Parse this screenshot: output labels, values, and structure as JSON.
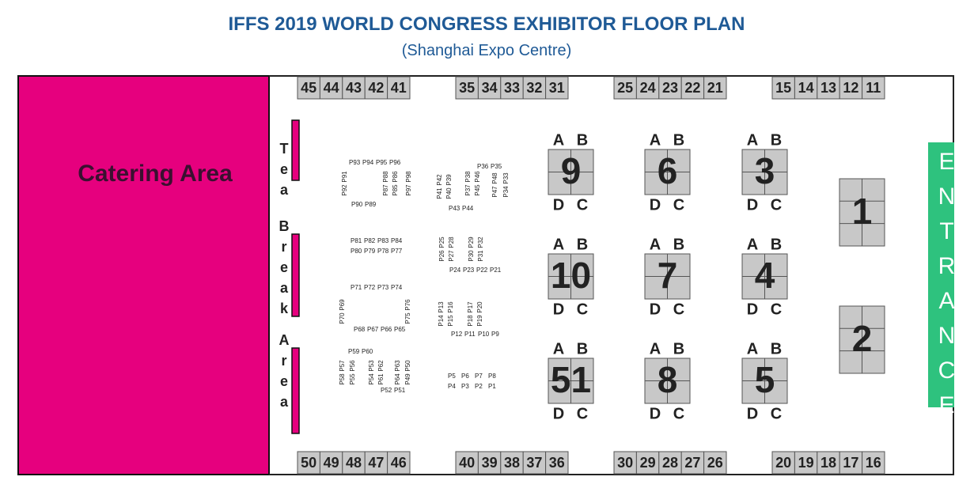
{
  "header": {
    "title": "IFFS 2019 WORLD CONGRESS EXHIBITOR FLOOR PLAN",
    "subtitle": "(Shanghai Expo Centre)"
  },
  "catering": "Catering Area",
  "tea_break": [
    "Tea",
    "Break",
    "Area"
  ],
  "entrance": "ENTRANCE",
  "booths_top": [
    [
      "45",
      "44",
      "43",
      "42",
      "41"
    ],
    [
      "35",
      "34",
      "33",
      "32",
      "31"
    ],
    [
      "25",
      "24",
      "23",
      "22",
      "21"
    ],
    [
      "15",
      "14",
      "13",
      "12",
      "11"
    ]
  ],
  "booths_bottom": [
    [
      "50",
      "49",
      "48",
      "47",
      "46"
    ],
    [
      "40",
      "39",
      "38",
      "37",
      "36"
    ],
    [
      "30",
      "29",
      "28",
      "27",
      "26"
    ],
    [
      "20",
      "19",
      "18",
      "17",
      "16"
    ]
  ],
  "islands": [
    {
      "label": "9",
      "top": [
        "A",
        "B"
      ],
      "bottom": [
        "D",
        "C"
      ]
    },
    {
      "label": "6",
      "top": [
        "A",
        "B"
      ],
      "bottom": [
        "D",
        "C"
      ]
    },
    {
      "label": "3",
      "top": [
        "A",
        "B"
      ],
      "bottom": [
        "D",
        "C"
      ]
    },
    {
      "label": "10",
      "top": [
        "A",
        "B"
      ],
      "bottom": [
        "D",
        "C"
      ]
    },
    {
      "label": "7",
      "top": [
        "A",
        "B"
      ],
      "bottom": [
        "D",
        "C"
      ]
    },
    {
      "label": "4",
      "top": [
        "A",
        "B"
      ],
      "bottom": [
        "D",
        "C"
      ]
    },
    {
      "label": "51",
      "top": [
        "A",
        "B"
      ],
      "bottom": [
        "D",
        "C"
      ]
    },
    {
      "label": "8",
      "top": [
        "A",
        "B"
      ],
      "bottom": [
        "D",
        "C"
      ]
    },
    {
      "label": "5",
      "top": [
        "A",
        "B"
      ],
      "bottom": [
        "D",
        "C"
      ]
    }
  ],
  "large_booths": [
    "1",
    "2"
  ],
  "poster_groups": [
    [
      "P93",
      "P94",
      "P95",
      "P96"
    ],
    [
      "P91",
      "P92"
    ],
    [
      "P88",
      "P87"
    ],
    [
      "P86",
      "P85"
    ],
    [
      "P98",
      "P97"
    ],
    [
      "P90",
      "P89"
    ],
    [
      "P36",
      "P35"
    ],
    [
      "P42",
      "P41"
    ],
    [
      "P39",
      "P40"
    ],
    [
      "P38",
      "P37"
    ],
    [
      "P46",
      "P45"
    ],
    [
      "P48",
      "P47"
    ],
    [
      "P33",
      "P34"
    ],
    [
      "P43",
      "P44"
    ],
    [
      "P81",
      "P82",
      "P83",
      "P84"
    ],
    [
      "P80",
      "P79",
      "P78",
      "P77"
    ],
    [
      "P25",
      "P26"
    ],
    [
      "P28",
      "P27"
    ],
    [
      "P29",
      "P30"
    ],
    [
      "P32",
      "P31"
    ],
    [
      "P24",
      "P23",
      "P22",
      "P21"
    ],
    [
      "P71",
      "P72",
      "P73",
      "P74"
    ],
    [
      "P69",
      "P70"
    ],
    [
      "P76",
      "P75"
    ],
    [
      "P68",
      "P67",
      "P66",
      "P65"
    ],
    [
      "P13",
      "P14"
    ],
    [
      "P16",
      "P15"
    ],
    [
      "P17",
      "P18"
    ],
    [
      "P20",
      "P19"
    ],
    [
      "P12",
      "P11",
      "P10",
      "P9"
    ],
    [
      "P59",
      "P60"
    ],
    [
      "P57",
      "P58"
    ],
    [
      "P56",
      "P55"
    ],
    [
      "P53",
      "P54"
    ],
    [
      "P62",
      "P61"
    ],
    [
      "P63",
      "P64"
    ],
    [
      "P50",
      "P49"
    ],
    [
      "P52",
      "P51"
    ],
    [
      "P5",
      "P6",
      "P7",
      "P8"
    ],
    [
      "P4",
      "P3",
      "P2",
      "P1"
    ]
  ]
}
